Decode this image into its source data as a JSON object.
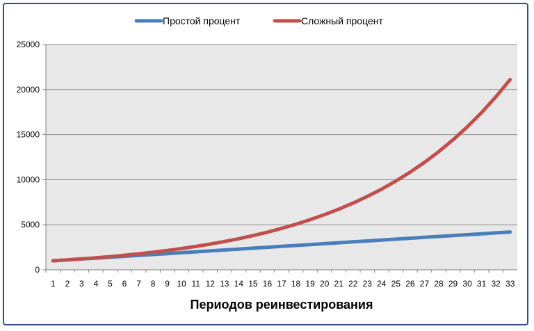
{
  "chart_data": {
    "type": "line",
    "title": "",
    "xlabel": "Периодов реинвестирования",
    "ylabel": "",
    "ylim": [
      0,
      25000
    ],
    "yticks": [
      "0",
      "5000",
      "10000",
      "15000",
      "20000",
      "25000"
    ],
    "categories": [
      "1",
      "2",
      "3",
      "4",
      "5",
      "6",
      "7",
      "8",
      "9",
      "10",
      "11",
      "12",
      "13",
      "14",
      "15",
      "16",
      "17",
      "18",
      "19",
      "20",
      "21",
      "22",
      "23",
      "24",
      "25",
      "26",
      "27",
      "28",
      "29",
      "30",
      "31",
      "32",
      "33"
    ],
    "grid": true,
    "legend_position": "top",
    "series": [
      {
        "name": "Простой процент",
        "color": "#4a7ebb",
        "values": [
          1000,
          1100,
          1200,
          1300,
          1400,
          1500,
          1600,
          1700,
          1800,
          1900,
          2000,
          2100,
          2200,
          2300,
          2400,
          2500,
          2600,
          2700,
          2800,
          2900,
          3000,
          3100,
          3200,
          3300,
          3400,
          3500,
          3600,
          3700,
          3800,
          3900,
          4000,
          4100,
          4200
        ]
      },
      {
        "name": "Сложный процент",
        "color": "#c0504d",
        "values": [
          1000,
          1100,
          1210,
          1331,
          1464,
          1611,
          1772,
          1949,
          2144,
          2358,
          2594,
          2853,
          3138,
          3452,
          3797,
          4177,
          4595,
          5054,
          5560,
          6116,
          6727,
          7400,
          8140,
          8954,
          9850,
          10835,
          11918,
          13110,
          14421,
          15863,
          17449,
          19194,
          21114
        ]
      }
    ]
  }
}
